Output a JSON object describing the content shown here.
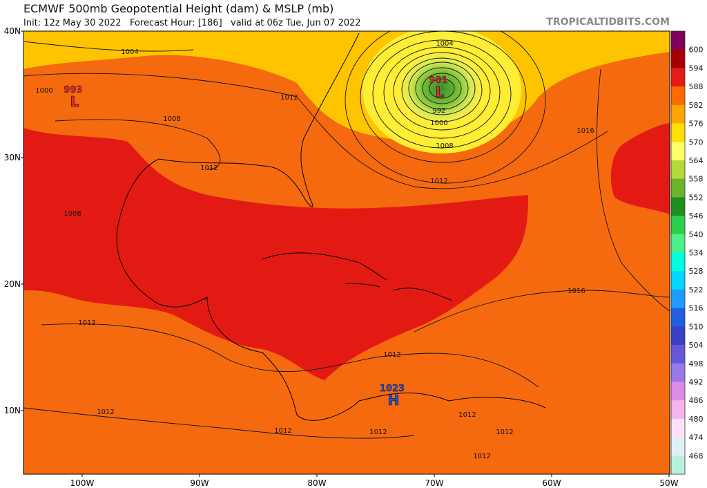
{
  "header": {
    "title": "ECMWF 500mb Geopotential Height (dam) & MSLP (mb)",
    "subtitle": "Init: 12z May 30 2022   Forecast Hour: [186]   valid at 06z Tue, Jun 07 2022",
    "source": "TROPICALTIDBITS.COM"
  },
  "map": {
    "lat_labels": [
      "40N",
      "30N",
      "20N",
      "10N"
    ],
    "lon_labels": [
      "100W",
      "90W",
      "80W",
      "70W",
      "60W",
      "50W"
    ],
    "isobar_labels": [
      "1004",
      "1000",
      "1008",
      "1012",
      "1012",
      "1008",
      "1004",
      "992",
      "1000",
      "1008",
      "1012",
      "1016",
      "1016",
      "1012",
      "1012",
      "1012",
      "1012",
      "1012",
      "1012",
      "1012",
      "1012"
    ],
    "centers": [
      {
        "pressure": "981",
        "label": "L"
      },
      {
        "pressure": "993",
        "label": "L"
      },
      {
        "pressure": "1023",
        "label": "H"
      }
    ]
  },
  "colorbar": {
    "labels": [
      600,
      594,
      588,
      582,
      576,
      570,
      564,
      558,
      552,
      546,
      540,
      534,
      528,
      522,
      516,
      510,
      504,
      498,
      492,
      486,
      480,
      474,
      468
    ],
    "colors": [
      "#80005a",
      "#a80000",
      "#e41b17",
      "#ff6a00",
      "#ffa500",
      "#ffe000",
      "#ffff66",
      "#b5d83a",
      "#6cb32c",
      "#1f8f1f",
      "#2ccf4a",
      "#4cf08a",
      "#00ffe0",
      "#00d8ff",
      "#1e9bff",
      "#1f5fe0",
      "#3a40c8",
      "#6656d8",
      "#9a78e8",
      "#e08ae8",
      "#f4b4ee",
      "#fbe0f6",
      "#dff0f8",
      "#b8f0dc"
    ]
  }
}
